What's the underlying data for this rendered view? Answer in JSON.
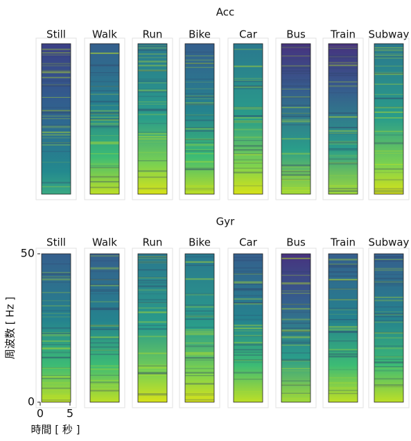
{
  "chart_data": [
    {
      "type": "heatmap",
      "title": "Acc",
      "categories": [
        "Still",
        "Walk",
        "Run",
        "Bike",
        "Car",
        "Bus",
        "Train",
        "Subway"
      ]
    },
    {
      "type": "heatmap",
      "title": "Gyr",
      "categories": [
        "Still",
        "Walk",
        "Run",
        "Bike",
        "Car",
        "Bus",
        "Train",
        "Subway"
      ],
      "y_label": "周波数 [ Hz ]",
      "x_label": "時間 [ 秒 ]",
      "ylim": [
        0,
        50
      ],
      "yticks": [
        0,
        50
      ],
      "xlim": [
        0,
        5
      ],
      "xticks": [
        0,
        5
      ]
    }
  ]
}
